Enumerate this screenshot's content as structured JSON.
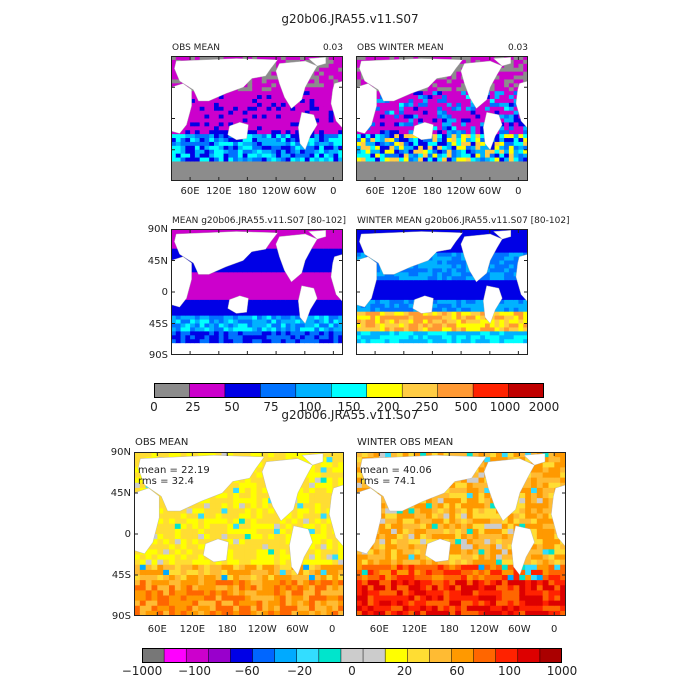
{
  "colors": {
    "land": "#ffffff",
    "missing": "#8c8c8c",
    "frame": "#222222"
  },
  "icons": [],
  "chart_data": [
    {
      "type": "heatmap",
      "title": "g20b06.JRA55.v11.S07",
      "panels": [
        {
          "id": "obs_mean",
          "label": "OBS MEAN",
          "value": "0.03",
          "pattern": "obs_annual"
        },
        {
          "id": "obs_winter_mean",
          "label": "OBS WINTER MEAN",
          "value": "0.03",
          "pattern": "obs_winter"
        },
        {
          "id": "model_mean",
          "label": "MEAN g20b06.JRA55.v11.S07 [80-102]",
          "pattern": "model_annual"
        },
        {
          "id": "model_winter_mean",
          "label": "WINTER MEAN g20b06.JRA55.v11.S07 [80-102]",
          "pattern": "model_winter"
        }
      ],
      "x_ticks": [
        "60E",
        "120E",
        "180",
        "120W",
        "60W",
        "0"
      ],
      "y_ticks": [
        "90N",
        "45N",
        "0",
        "45S",
        "90S"
      ],
      "colorbar": {
        "labels": [
          "0",
          "25",
          "50",
          "75",
          "100",
          "150",
          "200",
          "250",
          "500",
          "1000",
          "2000"
        ],
        "colors": [
          "#8c8c8c",
          "#cc00cc",
          "#0000e6",
          "#0072ff",
          "#00b2ff",
          "#00ffff",
          "#ffff00",
          "#ffcc44",
          "#ff9933",
          "#ff2200",
          "#c00000"
        ]
      }
    },
    {
      "type": "heatmap",
      "title": "g20b06.JRA55.v11.S07",
      "panels": [
        {
          "id": "obs_mean_diff",
          "label": "OBS MEAN",
          "stats": [
            "mean = 22.19",
            "rms = 32.4"
          ],
          "pattern": "diff_annual"
        },
        {
          "id": "winter_obs_mean_diff",
          "label": "WINTER OBS MEAN",
          "stats": [
            "mean = 40.06",
            "rms = 74.1"
          ],
          "pattern": "diff_winter"
        }
      ],
      "x_ticks": [
        "60E",
        "120E",
        "180",
        "120W",
        "60W",
        "0"
      ],
      "y_ticks": [
        "90N",
        "45N",
        "0",
        "45S",
        "90S"
      ],
      "colorbar": {
        "labels": [
          "−1000",
          "−100",
          "−60",
          "−20",
          "0",
          "20",
          "60",
          "100",
          "1000"
        ],
        "colors": [
          "#777777",
          "#ff00ff",
          "#cc00cc",
          "#9900cc",
          "#0000e6",
          "#0066ff",
          "#00aaff",
          "#33ddff",
          "#00e5cc",
          "#cccccc",
          "#cccccc",
          "#ffff00",
          "#ffdd33",
          "#ffbb33",
          "#ff9900",
          "#ff6600",
          "#ff2200",
          "#dd0000",
          "#aa0000"
        ]
      }
    }
  ]
}
